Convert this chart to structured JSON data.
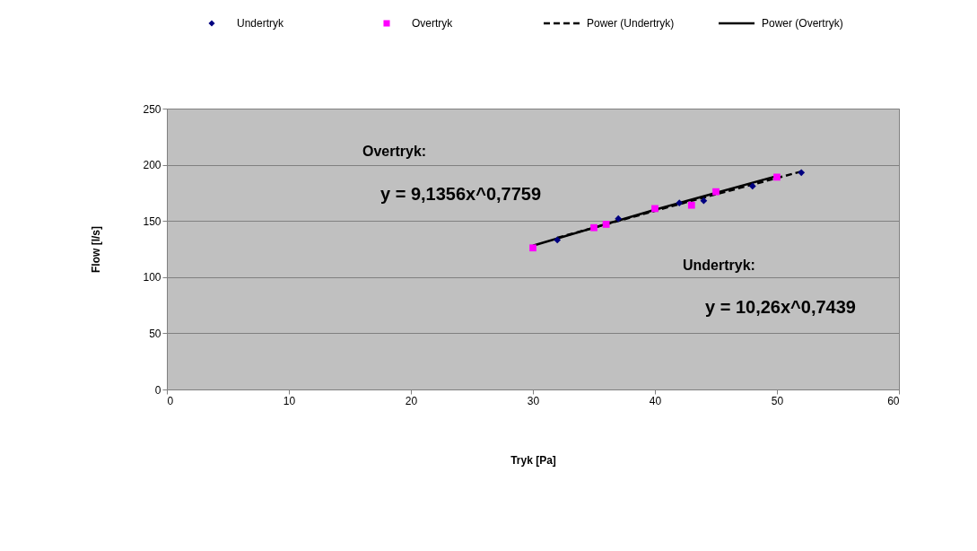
{
  "chart_data": {
    "type": "scatter",
    "xlabel": "Tryk [Pa]",
    "ylabel": "Flow [l/s]",
    "xlim": [
      0,
      60
    ],
    "xticks": [
      0,
      10,
      20,
      30,
      40,
      50,
      60
    ],
    "ylim": [
      0,
      250
    ],
    "yticks": [
      0,
      50,
      100,
      150,
      200,
      250
    ],
    "grid": "y",
    "legend": "top",
    "series": [
      {
        "name": "Undertryk",
        "type": "scatter",
        "marker": "diamond",
        "color": "#000080",
        "x": [
          32,
          37,
          42,
          44,
          48,
          52
        ],
        "values": [
          133,
          152,
          166,
          168,
          181,
          193
        ]
      },
      {
        "name": "Overtryk",
        "type": "scatter",
        "marker": "square",
        "color": "#ff00ff",
        "x": [
          30,
          35,
          36,
          40,
          43,
          45,
          50
        ],
        "values": [
          126,
          144,
          147,
          161,
          164,
          176,
          189
        ]
      },
      {
        "name": "Power (Undertryk)",
        "type": "line",
        "line_style": "dashed",
        "marker": "none",
        "color": "#000000",
        "x": [
          32,
          42,
          52
        ],
        "values": [
          135,
          165,
          194
        ]
      },
      {
        "name": "Power (Overtryk)",
        "type": "line",
        "line_style": "solid",
        "marker": "none",
        "color": "#000000",
        "x": [
          30,
          40,
          50
        ],
        "values": [
          128,
          160,
          190
        ]
      }
    ],
    "annotations": [
      "Overtryk:",
      "y = 9,1356x^0,7759",
      "Undertryk:",
      "y = 10,26x^0,7439"
    ]
  }
}
